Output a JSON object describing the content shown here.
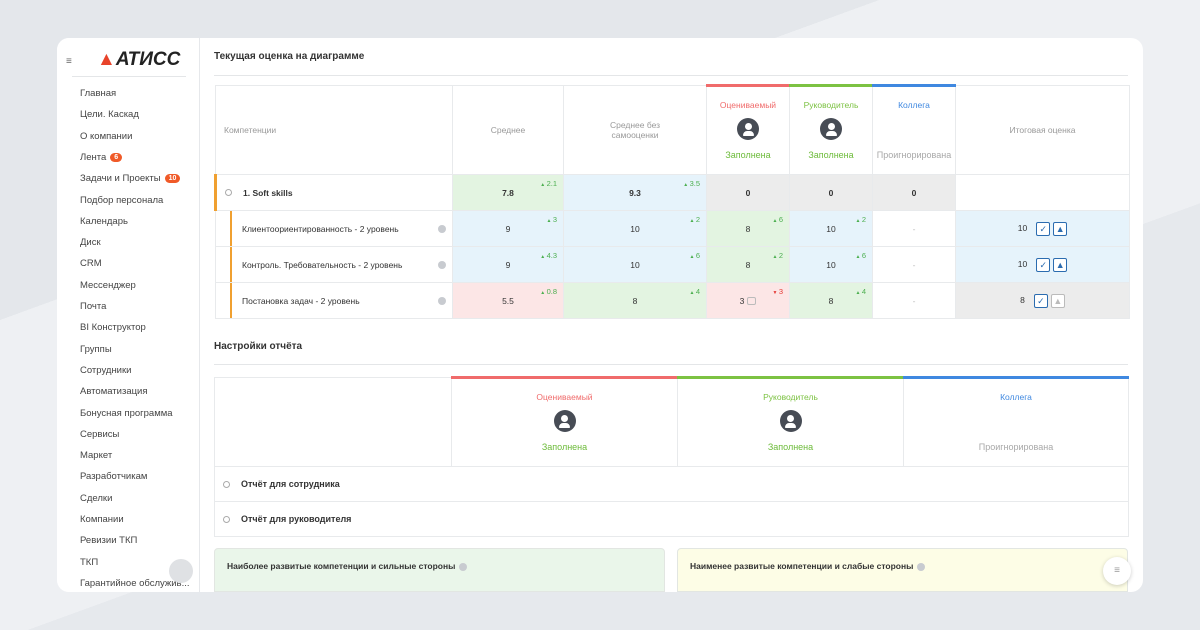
{
  "logo": "АТИСС",
  "menu": [
    {
      "label": "Главная"
    },
    {
      "label": "Цели. Каскад"
    },
    {
      "label": "О компании"
    },
    {
      "label": "Лента",
      "badge": 6
    },
    {
      "label": "Задачи и Проекты",
      "badge": 10
    },
    {
      "label": "Подбор персонала"
    },
    {
      "label": "Календарь"
    },
    {
      "label": "Диск"
    },
    {
      "label": "CRM"
    },
    {
      "label": "Мессенджер"
    },
    {
      "label": "Почта"
    },
    {
      "label": "BI Конструктор"
    },
    {
      "label": "Группы"
    },
    {
      "label": "Сотрудники"
    },
    {
      "label": "Автоматизация"
    },
    {
      "label": "Бонусная программа"
    },
    {
      "label": "Сервисы"
    },
    {
      "label": "Маркет"
    },
    {
      "label": "Разработчикам"
    },
    {
      "label": "Сделки"
    },
    {
      "label": "Компании"
    },
    {
      "label": "Ревизии ТКП"
    },
    {
      "label": "ТКП"
    },
    {
      "label": "Гарантийное обслужив..."
    }
  ],
  "current": {
    "title": "Текущая оценка на диаграмме",
    "columns": {
      "competence": "Компетенции",
      "average": "Среднее",
      "average_no_self": "Среднее без самооценки",
      "final": "Итоговая оценка"
    },
    "raters": [
      {
        "name": "Оцениваемый",
        "status": "Заполнена",
        "color": "#f06b6b",
        "status_color": "#6dbb3a"
      },
      {
        "name": "Руководитель",
        "status": "Заполнена",
        "color": "#7cc242",
        "status_color": "#6dbb3a"
      },
      {
        "name": "Коллега",
        "status": "Проигнорирована",
        "color": "#3f88e0",
        "status_color": "#a8a8a8"
      }
    ],
    "group": {
      "name": "1. Soft skills",
      "cells": [
        {
          "value": 7.8,
          "delta": 2.1,
          "dir": "up",
          "tone": "green"
        },
        {
          "value": 9.3,
          "delta": 3.5,
          "dir": "up",
          "tone": "blue"
        },
        {
          "value": 0,
          "tone": "gray"
        },
        {
          "value": 0,
          "tone": "gray"
        },
        {
          "value": 0,
          "tone": "gray"
        }
      ]
    },
    "rows": [
      {
        "name": "Клиентоориентированность - 2 уровень",
        "cells": [
          {
            "value": 9,
            "delta": 3,
            "dir": "up",
            "tone": "blue"
          },
          {
            "value": 10,
            "delta": 2,
            "dir": "up",
            "tone": "blue"
          },
          {
            "value": 8,
            "delta": 6,
            "dir": "up",
            "tone": "green"
          },
          {
            "value": 10,
            "delta": 2,
            "dir": "up",
            "tone": "blue"
          },
          {
            "value": "-",
            "tone": "white"
          }
        ],
        "final": 10,
        "final_tone": "blue",
        "cap": true
      },
      {
        "name": "Контроль. Требовательность - 2 уровень",
        "cells": [
          {
            "value": 9,
            "delta": 4.3,
            "dir": "up",
            "tone": "blue"
          },
          {
            "value": 10,
            "delta": 6,
            "dir": "up",
            "tone": "blue"
          },
          {
            "value": 8,
            "delta": 2,
            "dir": "up",
            "tone": "green"
          },
          {
            "value": 10,
            "delta": 6,
            "dir": "up",
            "tone": "blue"
          },
          {
            "value": "-",
            "tone": "white"
          }
        ],
        "final": 10,
        "final_tone": "blue",
        "cap": true
      },
      {
        "name": "Постановка задач - 2 уровень",
        "cells": [
          {
            "value": 5.5,
            "delta": 0.8,
            "dir": "up",
            "tone": "red"
          },
          {
            "value": 8,
            "delta": 4,
            "dir": "up",
            "tone": "green"
          },
          {
            "value": 3,
            "delta": 3,
            "dir": "down",
            "tone": "red",
            "comment": true
          },
          {
            "value": 8,
            "delta": 4,
            "dir": "up",
            "tone": "green"
          },
          {
            "value": "-",
            "tone": "white"
          }
        ],
        "final": 8,
        "final_tone": "gray",
        "cap": false
      }
    ]
  },
  "settings": {
    "title": "Настройки отчёта",
    "reports": [
      "Отчёт для сотрудника",
      "Отчёт для руководителя"
    ]
  },
  "panels": [
    {
      "title": "Наиболее развитые компетенции и сильные стороны",
      "tone": "#eaf6ea"
    },
    {
      "title": "Наименее развитые компетенции и слабые стороны",
      "tone": "#fdfde6"
    }
  ]
}
